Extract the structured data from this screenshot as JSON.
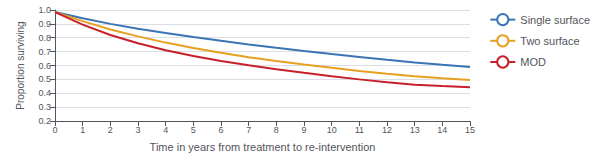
{
  "chart_data": {
    "type": "line",
    "xlabel": "Time in years from treatment to re-intervention",
    "ylabel": "Proportion surviving",
    "xlim": [
      0,
      15
    ],
    "ylim": [
      0.2,
      1.0
    ],
    "xticks": [
      0,
      1,
      2,
      3,
      4,
      5,
      6,
      7,
      8,
      9,
      10,
      11,
      12,
      13,
      14,
      15
    ],
    "yticks": [
      0.2,
      0.3,
      0.4,
      0.5,
      0.6,
      0.7,
      0.8,
      0.9,
      {
        "value": 1.0,
        "label": "1.0"
      }
    ],
    "grid": "y",
    "legend": "right",
    "x": [
      0,
      1,
      2,
      3,
      4,
      5,
      6,
      7,
      8,
      9,
      10,
      11,
      12,
      13,
      14,
      15
    ],
    "series": [
      {
        "name": "Single surface",
        "color": "#3b74b4",
        "values": [
          0.985,
          0.94,
          0.9,
          0.865,
          0.835,
          0.805,
          0.778,
          0.752,
          0.728,
          0.705,
          0.683,
          0.662,
          0.641,
          0.622,
          0.605,
          0.59
        ]
      },
      {
        "name": "Two surface",
        "color": "#e8a020",
        "values": [
          0.985,
          0.92,
          0.86,
          0.81,
          0.765,
          0.726,
          0.692,
          0.66,
          0.632,
          0.607,
          0.583,
          0.561,
          0.54,
          0.522,
          0.508,
          0.496
        ]
      },
      {
        "name": "MOD",
        "color": "#c8202a",
        "values": [
          0.985,
          0.895,
          0.82,
          0.76,
          0.71,
          0.668,
          0.632,
          0.601,
          0.573,
          0.547,
          0.523,
          0.5,
          0.48,
          0.462,
          0.452,
          0.443
        ]
      }
    ]
  }
}
